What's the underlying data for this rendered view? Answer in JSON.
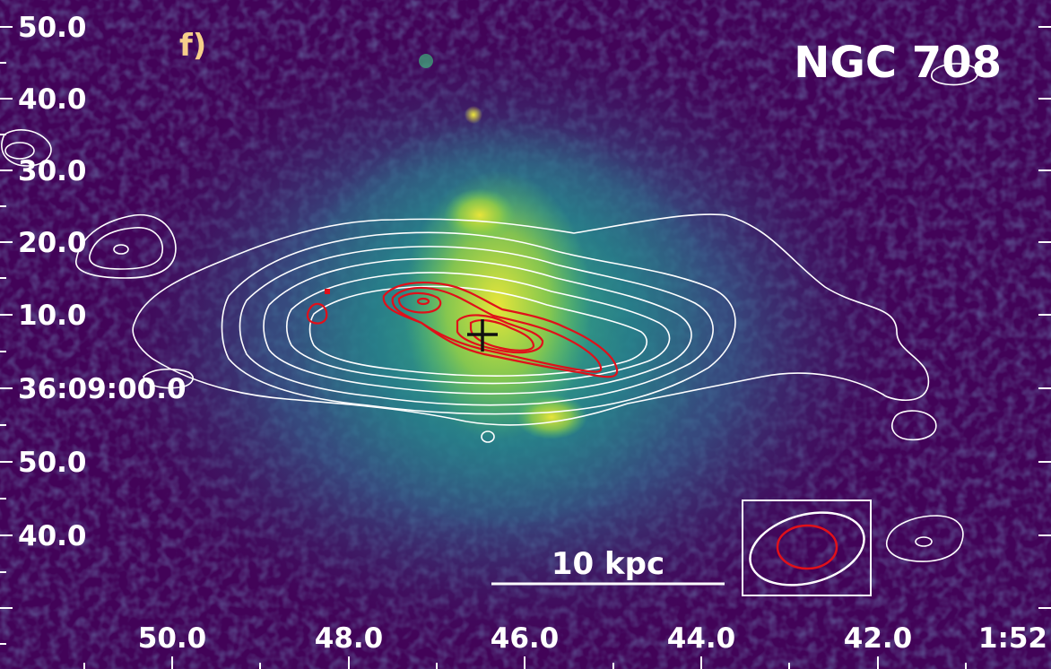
{
  "image": {
    "title": "NGC 708",
    "panel_label": "f)",
    "scale_bar_label": "10 kpc",
    "y_tick_labels": [
      "50.0",
      "40.0",
      "30.0",
      "20.0",
      "10.0",
      "36:09:00.0",
      "50.0",
      "40.0"
    ],
    "x_tick_labels": [
      "50.0",
      "48.0",
      "46.0",
      "44.0",
      "42.0",
      "1:52"
    ],
    "colors": {
      "background": "#420358",
      "emission_mid": "#2f8a8c",
      "emission_peak": "#e3e13a",
      "radio_contours_white": "#ffffff",
      "radio_contours_red": "#e0101a",
      "nucleus_cross": "#111111",
      "panel_label": "#f6cf8a"
    },
    "overlay": {
      "nucleus_marker": "cross-icon",
      "beam_box": "beam-ellipse-icon"
    }
  }
}
